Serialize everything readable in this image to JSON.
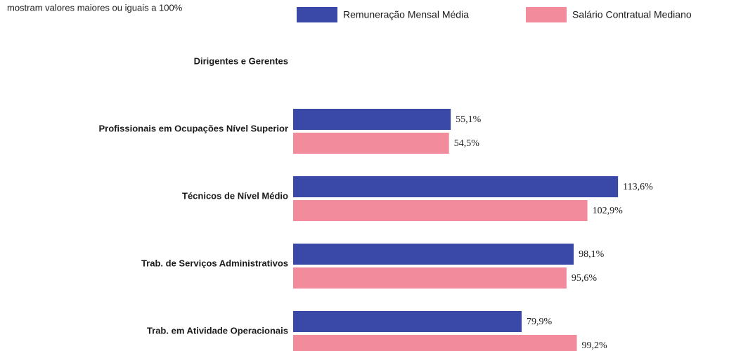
{
  "chart_data": {
    "type": "barh",
    "subtitle": "mostram valores maiores ou iguais a 100%",
    "categories": [
      "Dirigentes e Gerentes",
      "Profissionais em Ocupações Nível Superior",
      "Técnicos de Nível Médio",
      "Trab. de Serviços Administrativos",
      "Trab. em Atividade Operacionais"
    ],
    "series": [
      {
        "name": "Remuneração Mensal Média",
        "color": "#3a49a8",
        "values": [
          null,
          55.1,
          113.6,
          98.1,
          79.9
        ],
        "value_labels": [
          null,
          "55,1%",
          "113,6%",
          "98,1%",
          "79,9%"
        ]
      },
      {
        "name": "Salário Contratual Mediano",
        "color": "#f28c9c",
        "values": [
          null,
          54.5,
          102.9,
          95.6,
          99.2
        ],
        "value_labels": [
          null,
          "54,5%",
          "102,9%",
          "95,6%",
          "99,2%"
        ]
      }
    ]
  }
}
